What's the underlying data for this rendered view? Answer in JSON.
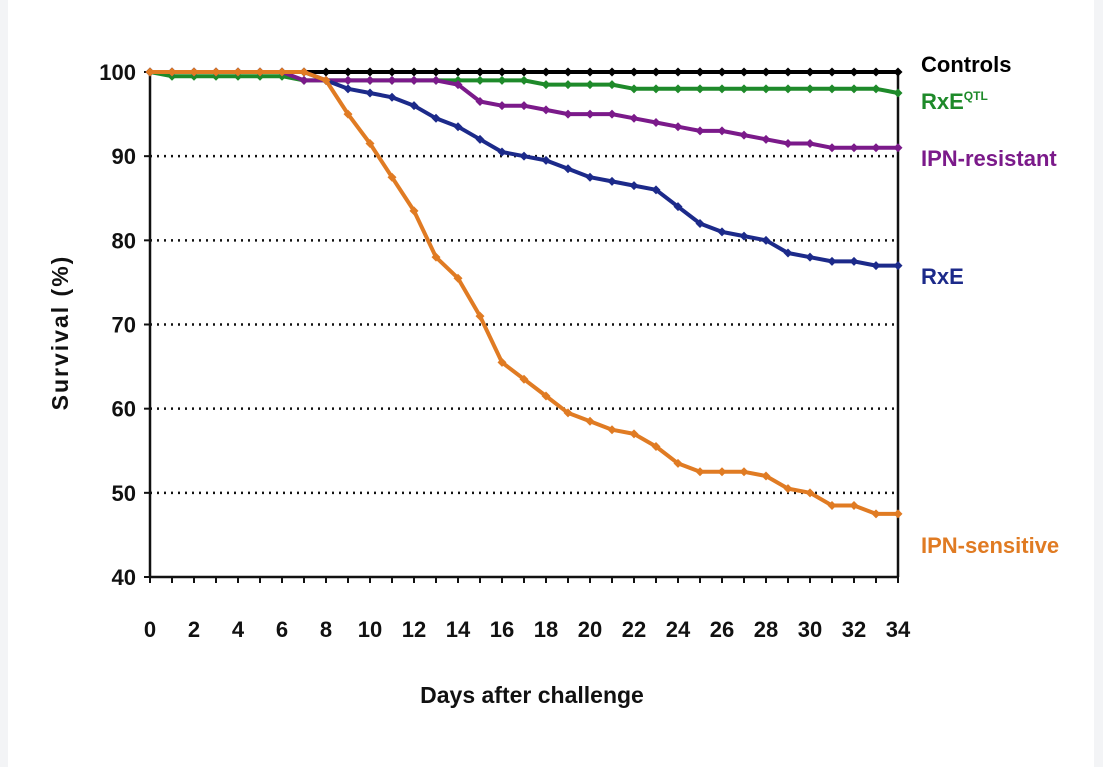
{
  "chart_data": {
    "type": "line",
    "title": "",
    "xlabel": "Days after challenge",
    "ylabel": "Survival (%)",
    "xlim": [
      0,
      34
    ],
    "ylim": [
      40,
      100
    ],
    "x_ticks": [
      0,
      2,
      4,
      6,
      8,
      10,
      12,
      14,
      16,
      18,
      20,
      22,
      24,
      26,
      28,
      30,
      32,
      34
    ],
    "y_ticks": [
      40,
      50,
      60,
      70,
      80,
      90,
      100
    ],
    "gridlines": "horizontal dotted",
    "legend": "labels at right end of each line",
    "x": [
      0,
      1,
      2,
      3,
      4,
      5,
      6,
      7,
      8,
      9,
      10,
      11,
      12,
      13,
      14,
      15,
      16,
      17,
      18,
      19,
      20,
      21,
      22,
      23,
      24,
      25,
      26,
      27,
      28,
      29,
      30,
      31,
      32,
      33,
      34
    ],
    "series": [
      {
        "name": "Controls",
        "label_suffix": "",
        "color": "#000000",
        "values": [
          100,
          100,
          100,
          100,
          100,
          100,
          100,
          100,
          100,
          100,
          100,
          100,
          100,
          100,
          100,
          100,
          100,
          100,
          100,
          100,
          100,
          100,
          100,
          100,
          100,
          100,
          100,
          100,
          100,
          100,
          100,
          100,
          100,
          100,
          100
        ]
      },
      {
        "name": "RxE",
        "label_suffix": "QTL",
        "color": "#1e8a2a",
        "values": [
          100,
          99.5,
          99.5,
          99.5,
          99.5,
          99.5,
          99.5,
          99,
          99,
          99,
          99,
          99,
          99,
          99,
          99,
          99,
          99,
          99,
          98.5,
          98.5,
          98.5,
          98.5,
          98,
          98,
          98,
          98,
          98,
          98,
          98,
          98,
          98,
          98,
          98,
          98,
          97.5
        ]
      },
      {
        "name": "IPN-resistant",
        "label_suffix": "",
        "color": "#7b1a8a",
        "values": [
          100,
          100,
          100,
          100,
          100,
          100,
          100,
          99,
          99,
          99,
          99,
          99,
          99,
          99,
          98.5,
          96.5,
          96,
          96,
          95.5,
          95,
          95,
          95,
          94.5,
          94,
          93.5,
          93,
          93,
          92.5,
          92,
          91.5,
          91.5,
          91,
          91,
          91,
          91
        ]
      },
      {
        "name": "RxE",
        "label_suffix": "",
        "color": "#1c2a8a",
        "values": [
          100,
          100,
          100,
          100,
          100,
          100,
          100,
          100,
          99,
          98,
          97.5,
          97,
          96,
          94.5,
          93.5,
          92,
          90.5,
          90,
          89.5,
          88.5,
          87.5,
          87,
          86.5,
          86,
          84,
          82,
          81,
          80.5,
          80,
          78.5,
          78,
          77.5,
          77.5,
          77,
          77
        ]
      },
      {
        "name": "IPN-sensitive",
        "label_suffix": "",
        "color": "#e07b23",
        "values": [
          100,
          100,
          100,
          100,
          100,
          100,
          100,
          100,
          99,
          95,
          91.5,
          87.5,
          83.5,
          78,
          75.5,
          71,
          65.5,
          63.5,
          61.5,
          59.5,
          58.5,
          57.5,
          57,
          55.5,
          53.5,
          52.5,
          52.5,
          52.5,
          52,
          50.5,
          50,
          48.5,
          48.5,
          47.5,
          47.5
        ]
      }
    ]
  }
}
